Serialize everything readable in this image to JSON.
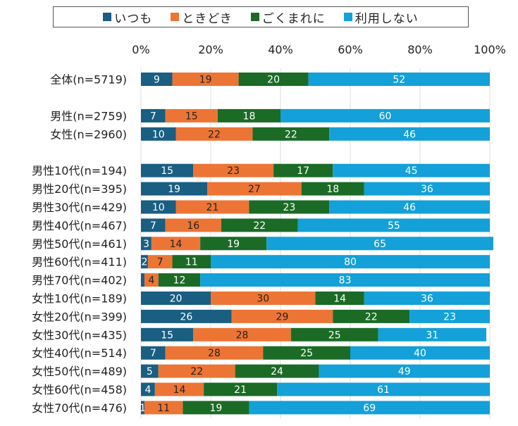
{
  "chart_data": {
    "type": "bar",
    "orientation": "horizontal",
    "stacked": true,
    "title": "",
    "xlabel": "",
    "ylabel": "",
    "xlim": [
      0,
      100
    ],
    "x_ticks": [
      "0%",
      "20%",
      "40%",
      "60%",
      "80%",
      "100%"
    ],
    "x_axis_position": "top",
    "grid": true,
    "legend_position": "top",
    "series": [
      {
        "name": "いつも",
        "color": "#1a5e82",
        "label_color": "#ffffff",
        "values": [
          9,
          7,
          10,
          15,
          19,
          10,
          7,
          3,
          2,
          1,
          20,
          26,
          15,
          7,
          5,
          4,
          1
        ]
      },
      {
        "name": "ときどき",
        "color": "#ec7535",
        "label_color": "#222222",
        "values": [
          19,
          15,
          22,
          23,
          27,
          21,
          16,
          14,
          7,
          4,
          30,
          29,
          28,
          28,
          22,
          14,
          11
        ]
      },
      {
        "name": "ごくまれに",
        "color": "#1b6b26",
        "label_color": "#ffffff",
        "values": [
          20,
          18,
          22,
          17,
          18,
          23,
          22,
          19,
          11,
          12,
          14,
          22,
          25,
          25,
          24,
          21,
          19
        ]
      },
      {
        "name": "利用しない",
        "color": "#14a0d8",
        "label_color": "#ffffff",
        "values": [
          52,
          60,
          46,
          45,
          36,
          46,
          55,
          65,
          80,
          83,
          36,
          23,
          31,
          40,
          49,
          61,
          69
        ]
      }
    ],
    "categories": [
      "全体(n=5719)",
      "男性(n=2759)",
      "女性(n=2960)",
      "男性10代(n=194)",
      "男性20代(n=395)",
      "男性30代(n=429)",
      "男性40代(n=467)",
      "男性50代(n=461)",
      "男性60代(n=411)",
      "男性70代(n=402)",
      "女性10代(n=189)",
      "女性20代(n=399)",
      "女性30代(n=435)",
      "女性40代(n=514)",
      "女性50代(n=489)",
      "女性60代(n=458)",
      "女性70代(n=476)"
    ],
    "hidden_labels": [
      [
        9,
        0
      ]
    ],
    "group_breaks_after": [
      0,
      2
    ]
  }
}
